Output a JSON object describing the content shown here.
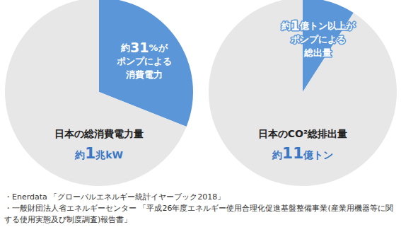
{
  "chart_data": [
    {
      "type": "pie",
      "title": "日本の総消費電力量",
      "subtitle": "約1兆kW",
      "values": [
        31,
        69
      ],
      "colors": [
        "#5b96d9",
        "#e7e7e7"
      ],
      "labels": [
        [
          "約31%が",
          "ポンプによる",
          "消費電力"
        ],
        null
      ]
    },
    {
      "type": "pie",
      "title": "日本のCO²総排出量",
      "subtitle": "約11億トン",
      "values": [
        1,
        10
      ],
      "colors": [
        "#5b96d9",
        "#e7e7e7"
      ],
      "labels": [
        [
          "約1億トン以上が",
          "ポンプによる",
          "総出量"
        ],
        null
      ]
    }
  ],
  "caption": [
    "・Enerdata 「グローバルエネルギー統計イヤーブック2018」",
    "・一般財団法人省エネルギーセンター 「平成26年度エネルギー使用合理化促進基盤整備事業(産業用機器等に関する使用実態及び制度調査)報告書」"
  ]
}
